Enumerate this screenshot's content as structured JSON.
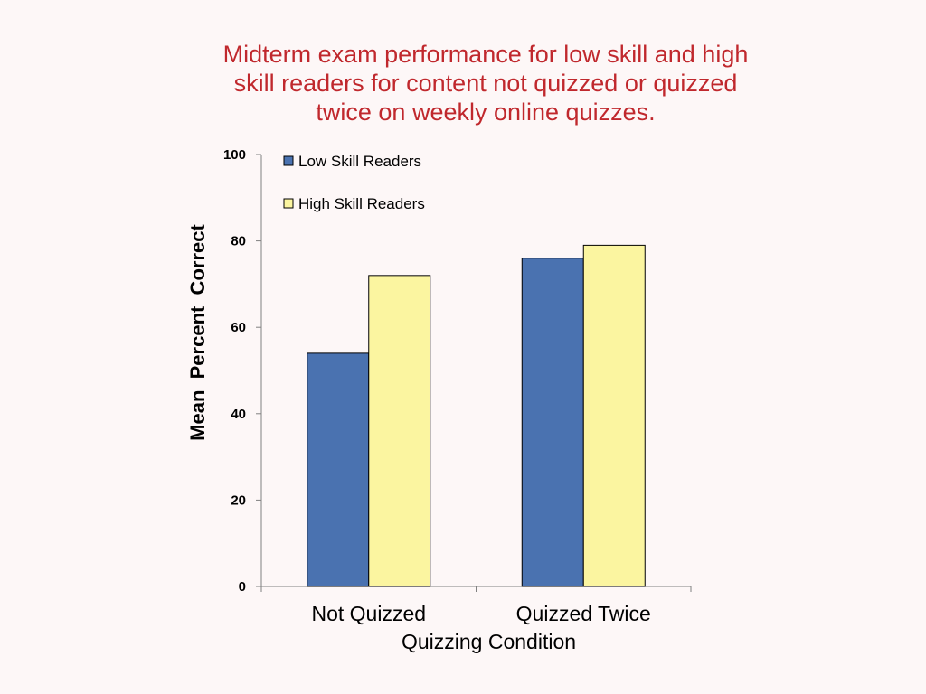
{
  "chart_data": {
    "type": "bar",
    "title": "Midterm exam performance for low skill and high skill readers for content not quizzed or quizzed twice on weekly online quizzes.",
    "title_lines": [
      "Midterm exam performance for low skill and high",
      "skill readers for content not quizzed or quizzed",
      "twice on weekly online quizzes."
    ],
    "xlabel": "Quizzing Condition",
    "ylabel": "Mean  Percent  Correct",
    "categories": [
      "Not Quizzed",
      "Quizzed Twice"
    ],
    "series": [
      {
        "name": "Low Skill Readers",
        "values": [
          54,
          76
        ],
        "color": "#4a72b0"
      },
      {
        "name": "High Skill Readers",
        "values": [
          72,
          79
        ],
        "color": "#fbf5a0"
      }
    ],
    "ylim": [
      0,
      100
    ],
    "yticks": [
      0,
      20,
      40,
      60,
      80,
      100
    ],
    "grid": false,
    "legend_position": "top-left"
  },
  "colors": {
    "title": "#c0282d",
    "background": "#fdf7f7",
    "bar_outline": "#000000"
  }
}
